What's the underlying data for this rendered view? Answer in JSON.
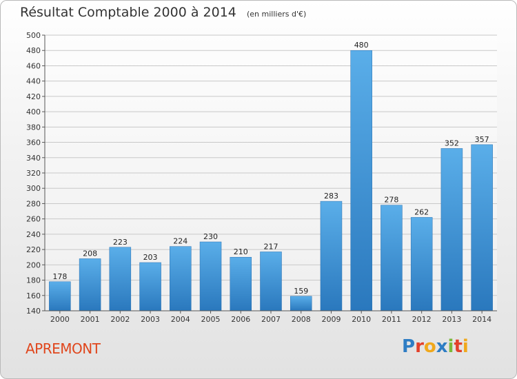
{
  "chart_data": {
    "type": "bar",
    "title": "Résultat Comptable 2000 à 2014",
    "subtitle": "(en milliers d'€)",
    "categories": [
      "2000",
      "2001",
      "2002",
      "2003",
      "2004",
      "2005",
      "2006",
      "2007",
      "2008",
      "2009",
      "2010",
      "2011",
      "2012",
      "2013",
      "2014"
    ],
    "values": [
      178,
      208,
      223,
      203,
      224,
      230,
      210,
      217,
      159,
      283,
      480,
      278,
      262,
      352,
      357
    ],
    "ylim": [
      140,
      500
    ],
    "yticks": [
      140,
      160,
      180,
      200,
      220,
      240,
      260,
      280,
      300,
      320,
      340,
      360,
      380,
      400,
      420,
      440,
      460,
      480,
      500
    ],
    "grid": true,
    "bar_color": "#3f95d8"
  },
  "footer": {
    "town": "APREMONT",
    "logo_letters": [
      "P",
      "r",
      "o",
      "x",
      "i",
      "t",
      "i"
    ],
    "logo_colors": [
      "#2e7dc4",
      "#e3402a",
      "#f0a81c",
      "#2e7dc4",
      "#7bb83a",
      "#e3402a",
      "#f0a81c"
    ]
  }
}
